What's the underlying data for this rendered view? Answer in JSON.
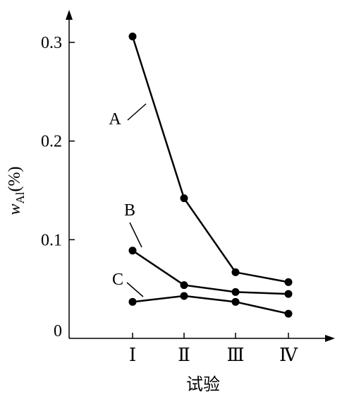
{
  "chart_data": {
    "type": "line",
    "categories": [
      "Ⅰ",
      "Ⅱ",
      "Ⅲ",
      "Ⅳ"
    ],
    "xlabel": "试验",
    "ylabel": {
      "main": "w",
      "sub": "Al",
      "unit": "(%)"
    },
    "ylim": [
      0,
      0.33
    ],
    "yticks": [
      0,
      0.1,
      0.2,
      0.3
    ],
    "ytick_labels": [
      "0",
      "0.1",
      "0.2",
      "0.3"
    ],
    "grid": false,
    "series": [
      {
        "name": "A",
        "values": [
          0.306,
          0.142,
          0.067,
          0.057
        ]
      },
      {
        "name": "B",
        "values": [
          0.089,
          0.054,
          0.047,
          0.045
        ]
      },
      {
        "name": "C",
        "values": [
          0.037,
          0.043,
          0.037,
          0.025
        ]
      }
    ]
  }
}
